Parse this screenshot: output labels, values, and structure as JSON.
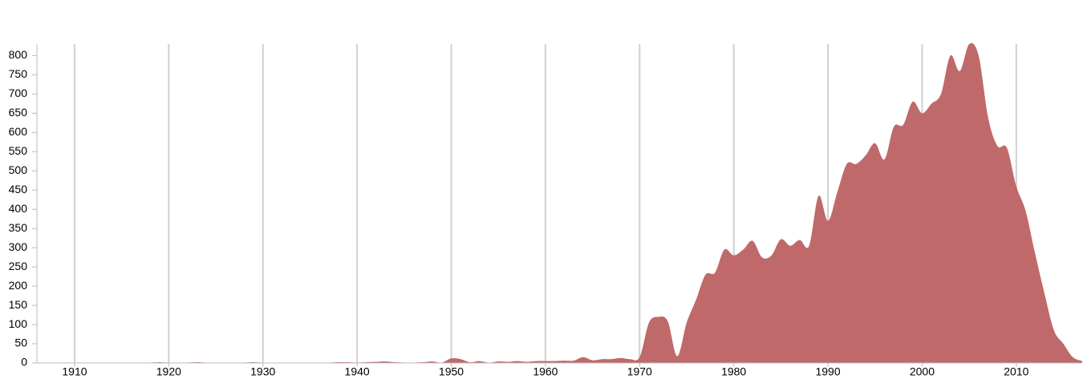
{
  "chart_data": {
    "type": "area",
    "x": [
      1906,
      1907,
      1908,
      1909,
      1910,
      1911,
      1912,
      1913,
      1914,
      1915,
      1916,
      1917,
      1918,
      1919,
      1920,
      1921,
      1922,
      1923,
      1924,
      1925,
      1926,
      1927,
      1928,
      1929,
      1930,
      1931,
      1932,
      1933,
      1934,
      1935,
      1936,
      1937,
      1938,
      1939,
      1940,
      1941,
      1942,
      1943,
      1944,
      1945,
      1946,
      1947,
      1948,
      1949,
      1950,
      1951,
      1952,
      1953,
      1954,
      1955,
      1956,
      1957,
      1958,
      1959,
      1960,
      1961,
      1962,
      1963,
      1964,
      1965,
      1966,
      1967,
      1968,
      1969,
      1970,
      1971,
      1972,
      1973,
      1974,
      1975,
      1976,
      1977,
      1978,
      1979,
      1980,
      1981,
      1982,
      1983,
      1984,
      1985,
      1986,
      1987,
      1988,
      1989,
      1990,
      1991,
      1992,
      1993,
      1994,
      1995,
      1996,
      1997,
      1998,
      1999,
      2000,
      2001,
      2002,
      2003,
      2004,
      2005,
      2006,
      2007,
      2008,
      2009,
      2010,
      2011,
      2012,
      2013,
      2014,
      2015,
      2016,
      2017
    ],
    "values": [
      1,
      1,
      1,
      1,
      1,
      1,
      1,
      1,
      1,
      1,
      1,
      1,
      1,
      2,
      1,
      1,
      1,
      2,
      1,
      1,
      1,
      1,
      1,
      2,
      1,
      1,
      1,
      1,
      1,
      1,
      1,
      1,
      2,
      2,
      1,
      2,
      3,
      4,
      2,
      1,
      1,
      2,
      4,
      1,
      12,
      10,
      2,
      5,
      1,
      4,
      3,
      5,
      3,
      5,
      5,
      5,
      6,
      6,
      15,
      7,
      10,
      10,
      13,
      10,
      15,
      105,
      120,
      108,
      18,
      105,
      165,
      230,
      235,
      295,
      280,
      295,
      318,
      275,
      280,
      322,
      305,
      320,
      305,
      435,
      370,
      445,
      518,
      518,
      540,
      572,
      530,
      615,
      620,
      680,
      650,
      675,
      700,
      800,
      760,
      830,
      800,
      640,
      565,
      560,
      460,
      395,
      285,
      180,
      85,
      50,
      15,
      5
    ],
    "color": "#c0696a",
    "xlim": [
      1906,
      2017
    ],
    "ylim": [
      0,
      830
    ],
    "xticks": [
      1910,
      1920,
      1930,
      1940,
      1950,
      1960,
      1970,
      1980,
      1990,
      2000,
      2010
    ],
    "yticks": [
      0,
      50,
      100,
      150,
      200,
      250,
      300,
      350,
      400,
      450,
      500,
      550,
      600,
      650,
      700,
      750,
      800
    ],
    "grid": true
  }
}
